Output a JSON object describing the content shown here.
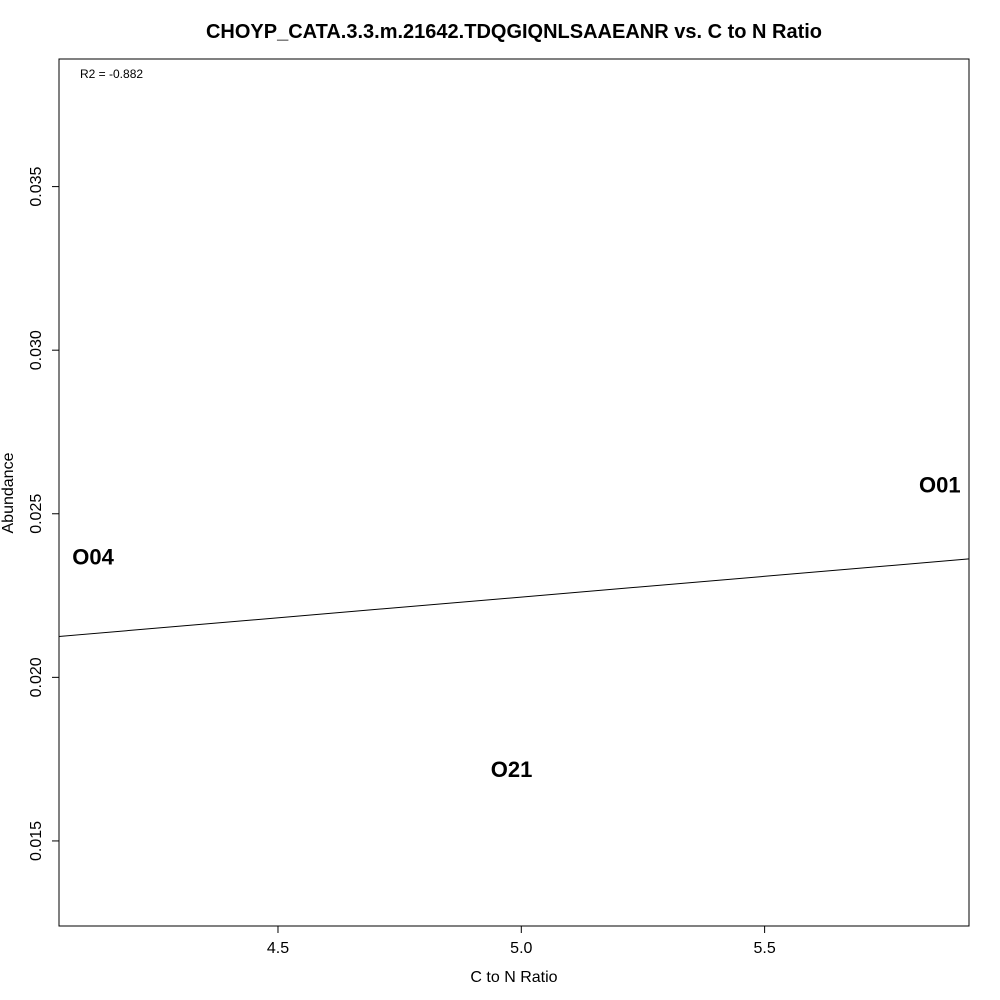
{
  "chart_data": {
    "type": "scatter",
    "title": "CHOYP_CATA.3.3.m.21642.TDQGIQNLSAAEANR vs. C to N Ratio",
    "xlabel": "C to N Ratio",
    "ylabel": "Abundance",
    "xlim": [
      4.05,
      5.92
    ],
    "ylim": [
      0.0124,
      0.0389
    ],
    "x_ticks": [
      4.5,
      5.0,
      5.5
    ],
    "x_tick_labels": [
      "4.5",
      "5.0",
      "5.5"
    ],
    "y_ticks": [
      0.015,
      0.02,
      0.025,
      0.03,
      0.035
    ],
    "y_tick_labels": [
      "0.015",
      "0.020",
      "0.025",
      "0.030",
      "0.035"
    ],
    "points": [
      {
        "label": "O04",
        "x": 4.12,
        "y": 0.0237
      },
      {
        "label": "O01",
        "x": 5.86,
        "y": 0.0259
      },
      {
        "label": "O21",
        "x": 4.98,
        "y": 0.0172
      }
    ],
    "regression_line": {
      "x": [
        4.05,
        5.92
      ],
      "y": [
        0.02125,
        0.02362
      ]
    },
    "annotation": "R2 = -0.882",
    "grid": false,
    "legend": "none"
  }
}
